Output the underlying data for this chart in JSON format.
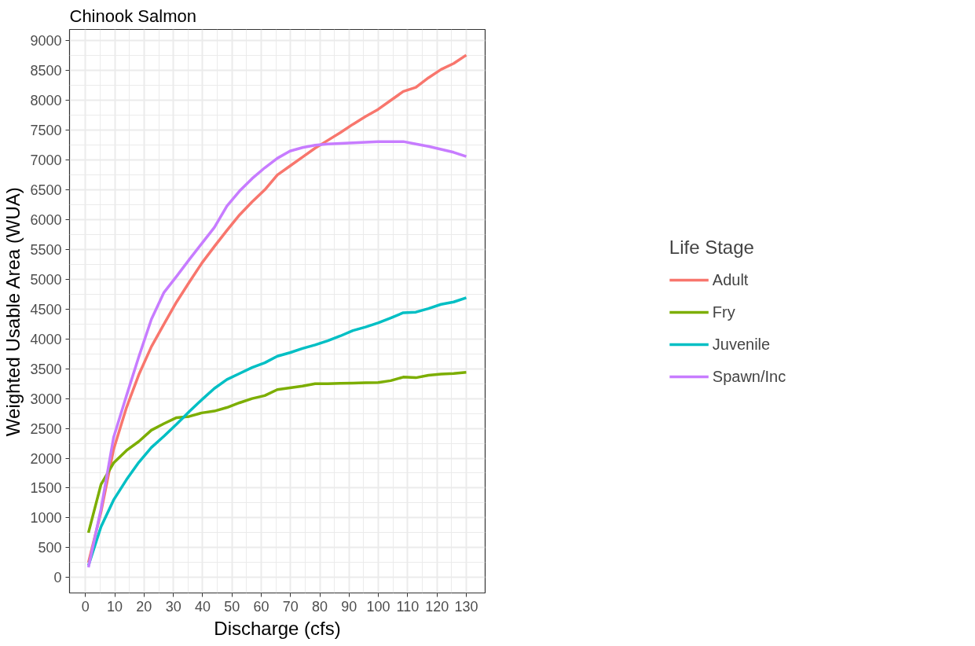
{
  "chart_data": {
    "type": "line",
    "title": "Chinook Salmon",
    "xlabel": "Discharge (cfs)",
    "ylabel": "Weighted Usable Area (WUA)",
    "legend_title": "Life Stage",
    "legend": "right",
    "grid": true,
    "line_style": "solid",
    "marker": "none",
    "x": [
      1,
      5.3,
      9.6,
      14,
      18.2,
      22.5,
      26.8,
      31.1,
      35.4,
      39.7,
      44,
      48.3,
      52.6,
      56.9,
      61.2,
      65.5,
      69.8,
      74.1,
      78.4,
      82.7,
      87,
      91.3,
      95.6,
      99.9,
      104.2,
      108.5,
      112.8,
      117.1,
      121.4,
      125.7,
      130
    ],
    "xlim": [
      -5.45,
      136.45
    ],
    "xticks": [
      0,
      10,
      20,
      30,
      40,
      50,
      60,
      70,
      80,
      90,
      100,
      110,
      120,
      130
    ],
    "ylim": [
      -260,
      9190
    ],
    "yticks": [
      0,
      500,
      1000,
      1500,
      2000,
      2500,
      3000,
      3500,
      4000,
      4500,
      5000,
      5500,
      6000,
      6500,
      7000,
      7500,
      8000,
      8500,
      9000
    ],
    "series": [
      {
        "name": "Adult",
        "color": "#f8766d",
        "values": [
          250,
          1100,
          2150,
          2850,
          3400,
          3870,
          4250,
          4620,
          4950,
          5270,
          5550,
          5820,
          6080,
          6300,
          6500,
          6750,
          6900,
          7050,
          7200,
          7330,
          7460,
          7600,
          7730,
          7850,
          8000,
          8150,
          8220,
          8380,
          8520,
          8620,
          8760
        ]
      },
      {
        "name": "Fry",
        "color": "#7cae00",
        "values": [
          750,
          1560,
          1920,
          2130,
          2280,
          2470,
          2580,
          2680,
          2700,
          2760,
          2790,
          2850,
          2930,
          3000,
          3050,
          3150,
          3180,
          3210,
          3250,
          3250,
          3255,
          3260,
          3265,
          3270,
          3300,
          3360,
          3350,
          3390,
          3410,
          3420,
          3440
        ]
      },
      {
        "name": "Juvenile",
        "color": "#00bfc4",
        "values": [
          200,
          850,
          1300,
          1640,
          1930,
          2180,
          2370,
          2570,
          2780,
          2980,
          3170,
          3320,
          3420,
          3520,
          3600,
          3710,
          3770,
          3840,
          3900,
          3970,
          4050,
          4140,
          4200,
          4270,
          4350,
          4440,
          4450,
          4510,
          4580,
          4620,
          4690
        ]
      },
      {
        "name": "Spawn/Inc",
        "color": "#c77cff",
        "values": [
          170,
          1150,
          2350,
          3050,
          3700,
          4330,
          4780,
          5050,
          5330,
          5600,
          5870,
          6230,
          6480,
          6690,
          6870,
          7030,
          7150,
          7210,
          7250,
          7270,
          7280,
          7290,
          7300,
          7310,
          7310,
          7310,
          7270,
          7230,
          7180,
          7130,
          7060
        ]
      }
    ]
  }
}
